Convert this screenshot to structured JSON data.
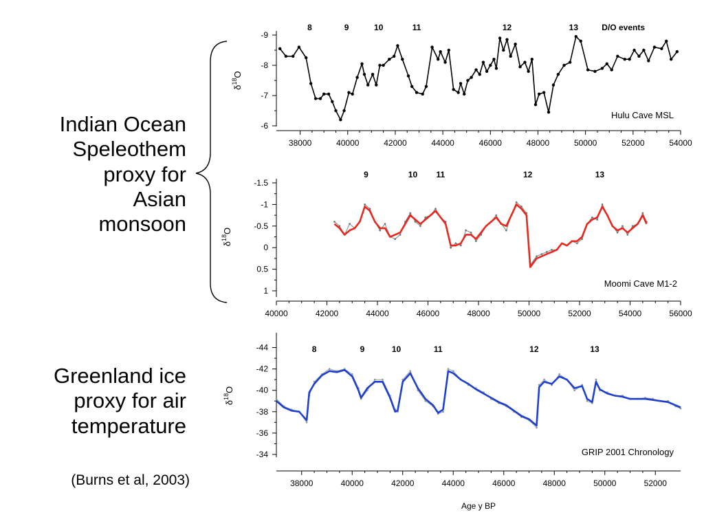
{
  "labels": {
    "indian": [
      "Indian Ocean",
      "Speleothem",
      "proxy for",
      "Asian",
      "monsoon"
    ],
    "greenland": [
      "Greenland ice",
      "proxy for air",
      "temperature"
    ],
    "citation": "(Burns et al, 2003)"
  },
  "colors": {
    "hulu": "#000000",
    "moomi_raw": "#6b7b7b",
    "moomi_smooth": "#e8281e",
    "grip_raw": "#8e9a9a",
    "grip_smooth": "#1f3fcf",
    "axis": "#000000"
  },
  "chart_data": [
    {
      "type": "line",
      "panel_label": "Hulu Cave MSL",
      "ylabel_main": "δ",
      "ylabel_sup": "18",
      "ylabel_sub": "O",
      "y_inverted": true,
      "xlim": [
        37000,
        54000
      ],
      "ylim": [
        -9,
        -6
      ],
      "xticks": [
        "38000",
        "40000",
        "42000",
        "44000",
        "46000",
        "48000",
        "50000",
        "52000",
        "54000"
      ],
      "yticks": [
        "-9",
        "-8",
        "-7",
        "-6"
      ],
      "events_label": "D/O events",
      "events": [
        {
          "label": "8",
          "x": 38400
        },
        {
          "label": "9",
          "x": 39950
        },
        {
          "label": "10",
          "x": 41300
        },
        {
          "label": "11",
          "x": 42900
        },
        {
          "label": "12",
          "x": 46700
        },
        {
          "label": "13",
          "x": 49500
        }
      ],
      "series": [
        {
          "x": [
            37150,
            37400,
            37700,
            37950,
            38250,
            38450,
            38650,
            38850,
            39000,
            39200,
            39350,
            39500,
            39700,
            39850,
            40050,
            40200,
            40400,
            40600,
            40700,
            40850,
            41050,
            41200,
            41350,
            41500,
            41750,
            41950,
            42100,
            42300,
            42550,
            42700,
            42900,
            43150,
            43300,
            43550,
            43800,
            43900,
            44100,
            44250,
            44450,
            44650,
            44750,
            44900,
            45050,
            45200,
            45400,
            45550,
            45700,
            45850,
            46000,
            46150,
            46250,
            46400,
            46550,
            46700,
            46850,
            47050,
            47250,
            47450,
            47600,
            47750,
            47900,
            48050,
            48250,
            48450,
            48650,
            48850,
            49100,
            49350,
            49600,
            49800,
            50100,
            50400,
            50700,
            50900,
            51100,
            51350,
            51650,
            51850,
            52050,
            52250,
            52450,
            52650,
            52900,
            53200,
            53400,
            53600,
            53850
          ],
          "values": [
            -8.55,
            -8.3,
            -8.3,
            -8.6,
            -8.25,
            -7.4,
            -6.9,
            -6.9,
            -7.05,
            -7.05,
            -6.8,
            -6.5,
            -6.2,
            -6.5,
            -7.1,
            -7.05,
            -7.6,
            -8.05,
            -7.7,
            -7.35,
            -7.7,
            -7.35,
            -8.0,
            -8.0,
            -8.2,
            -8.3,
            -8.65,
            -8.2,
            -7.65,
            -7.3,
            -7.1,
            -7.05,
            -7.3,
            -8.6,
            -8.2,
            -8.45,
            -8.1,
            -8.5,
            -7.2,
            -7.1,
            -7.4,
            -7.05,
            -7.5,
            -7.6,
            -7.85,
            -7.7,
            -8.1,
            -7.8,
            -8.0,
            -8.2,
            -7.9,
            -8.9,
            -8.5,
            -8.85,
            -8.3,
            -8.7,
            -7.95,
            -8.1,
            -7.8,
            -8.2,
            -6.7,
            -7.05,
            -7.1,
            -6.45,
            -7.35,
            -7.7,
            -8.0,
            -8.1,
            -8.95,
            -8.8,
            -7.85,
            -7.8,
            -7.9,
            -8.05,
            -7.85,
            -8.3,
            -8.2,
            -8.2,
            -8.5,
            -8.3,
            -8.5,
            -8.15,
            -8.6,
            -8.55,
            -8.8,
            -8.2,
            -8.45
          ]
        }
      ]
    },
    {
      "type": "line",
      "panel_label": "Moomi Cave M1-2",
      "ylabel_main": "δ",
      "ylabel_sup": "18",
      "ylabel_sub": "O",
      "y_inverted": true,
      "xlim": [
        40000,
        56000
      ],
      "ylim": [
        -1.5,
        1
      ],
      "xticks": [
        "40000",
        "42000",
        "44000",
        "46000",
        "48000",
        "50000",
        "52000",
        "54000",
        "56000"
      ],
      "yticks": [
        "-1.5",
        "-1",
        "-0.5",
        "0",
        "0.5",
        "1"
      ],
      "events": [
        {
          "label": "9",
          "x": 43550
        },
        {
          "label": "10",
          "x": 45400
        },
        {
          "label": "11",
          "x": 46500
        },
        {
          "label": "12",
          "x": 49950
        },
        {
          "label": "13",
          "x": 52800
        }
      ],
      "series": [
        {
          "x": [
            42300,
            42500,
            42700,
            42900,
            43100,
            43300,
            43500,
            43700,
            43900,
            44100,
            44300,
            44500,
            44700,
            44900,
            45100,
            45300,
            45500,
            45700,
            45900,
            46100,
            46300,
            46500,
            46700,
            46900,
            47100,
            47300,
            47500,
            47700,
            47900,
            48100,
            48300,
            48500,
            48700,
            48900,
            49100,
            49300,
            49500,
            49700,
            49900,
            50050,
            50300,
            50500,
            50700,
            50900,
            51100,
            51300,
            51500,
            51700,
            51900,
            52100,
            52300,
            52500,
            52700,
            52900,
            53100,
            53300,
            53500,
            53700,
            53900,
            54100,
            54300,
            54500,
            54650
          ],
          "values": [
            -0.6,
            -0.5,
            -0.3,
            -0.55,
            -0.45,
            -0.6,
            -1.0,
            -0.9,
            -0.6,
            -0.4,
            -0.55,
            -0.25,
            -0.2,
            -0.3,
            -0.6,
            -0.8,
            -0.6,
            -0.5,
            -0.7,
            -0.75,
            -0.9,
            -0.7,
            -0.6,
            0.0,
            -0.1,
            -0.05,
            -0.4,
            -0.35,
            -0.15,
            -0.3,
            -0.5,
            -0.6,
            -0.75,
            -0.55,
            -0.4,
            -0.75,
            -1.05,
            -0.95,
            -0.8,
            0.4,
            0.2,
            0.15,
            0.1,
            0.05,
            0.05,
            -0.1,
            -0.05,
            -0.15,
            -0.1,
            -0.2,
            -0.55,
            -0.7,
            -0.65,
            -1.0,
            -0.75,
            -0.5,
            -0.35,
            -0.5,
            -0.3,
            -0.5,
            -0.55,
            -0.8,
            -0.6
          ]
        },
        {
          "x": [
            42300,
            42500,
            42700,
            42900,
            43100,
            43300,
            43500,
            43700,
            43900,
            44100,
            44300,
            44500,
            44700,
            44900,
            45100,
            45300,
            45500,
            45700,
            45900,
            46100,
            46300,
            46500,
            46700,
            46900,
            47100,
            47300,
            47500,
            47700,
            47900,
            48100,
            48300,
            48500,
            48700,
            48900,
            49100,
            49300,
            49500,
            49700,
            49900,
            50050,
            50300,
            50500,
            50700,
            50900,
            51100,
            51300,
            51500,
            51700,
            51900,
            52100,
            52300,
            52500,
            52700,
            52900,
            53100,
            53300,
            53500,
            53700,
            53900,
            54100,
            54300,
            54500,
            54650
          ],
          "values": [
            -0.55,
            -0.45,
            -0.3,
            -0.4,
            -0.45,
            -0.6,
            -0.95,
            -0.85,
            -0.6,
            -0.45,
            -0.45,
            -0.25,
            -0.3,
            -0.35,
            -0.55,
            -0.75,
            -0.65,
            -0.55,
            -0.65,
            -0.75,
            -0.85,
            -0.7,
            -0.55,
            -0.05,
            -0.05,
            -0.1,
            -0.3,
            -0.3,
            -0.2,
            -0.35,
            -0.5,
            -0.6,
            -0.7,
            -0.55,
            -0.5,
            -0.75,
            -1.0,
            -0.9,
            -0.75,
            0.45,
            0.25,
            0.2,
            0.15,
            0.1,
            0.05,
            -0.1,
            -0.05,
            -0.15,
            -0.15,
            -0.25,
            -0.55,
            -0.65,
            -0.7,
            -0.95,
            -0.75,
            -0.5,
            -0.4,
            -0.45,
            -0.35,
            -0.45,
            -0.55,
            -0.75,
            -0.55
          ]
        }
      ]
    },
    {
      "type": "line",
      "panel_label": "GRIP 2001 Chronology",
      "ylabel_main": "δ",
      "ylabel_sup": "18",
      "ylabel_sub": "O",
      "xlabel": "Age y BP",
      "xlim": [
        37000,
        53000
      ],
      "ylim": [
        -45,
        -34
      ],
      "xticks": [
        "38000",
        "40000",
        "42000",
        "44000",
        "46000",
        "48000",
        "50000",
        "52000"
      ],
      "yticks": [
        "-34",
        "-36",
        "-38",
        "-40",
        "-42",
        "-44"
      ],
      "events": [
        {
          "label": "8",
          "x": 38500
        },
        {
          "label": "9",
          "x": 40400
        },
        {
          "label": "10",
          "x": 41750
        },
        {
          "label": "11",
          "x": 43400
        },
        {
          "label": "12",
          "x": 47200
        },
        {
          "label": "13",
          "x": 49600
        }
      ],
      "series": [
        {
          "x": [
            37000,
            37300,
            37600,
            37900,
            38200,
            38300,
            38500,
            38800,
            39100,
            39400,
            39700,
            40000,
            40250,
            40350,
            40600,
            40900,
            41200,
            41500,
            41700,
            41800,
            42000,
            42300,
            42600,
            42900,
            43200,
            43400,
            43600,
            43800,
            44000,
            44300,
            44600,
            44900,
            45200,
            45500,
            45800,
            46100,
            46400,
            46700,
            47000,
            47300,
            47400,
            47600,
            47900,
            48200,
            48500,
            48800,
            49100,
            49300,
            49500,
            49650,
            49800,
            50100,
            50400,
            50700,
            51000,
            51300,
            51600,
            51900,
            52200,
            52500,
            52800,
            53000
          ],
          "values": [
            -39.2,
            -38.5,
            -38.2,
            -38.0,
            -37.0,
            -39.5,
            -40.8,
            -41.5,
            -42.0,
            -41.8,
            -42.0,
            -41.5,
            -40.2,
            -39.2,
            -40.0,
            -41.0,
            -41.0,
            -39.5,
            -38.2,
            -38.0,
            -41.0,
            -41.8,
            -40.0,
            -39.0,
            -38.5,
            -37.8,
            -38.0,
            -42.0,
            -41.8,
            -41.0,
            -40.5,
            -40.2,
            -39.8,
            -39.2,
            -38.8,
            -38.5,
            -38.0,
            -37.5,
            -37.2,
            -36.5,
            -40.5,
            -41.0,
            -40.5,
            -41.5,
            -41.0,
            -40.0,
            -40.5,
            -39.0,
            -38.8,
            -41.0,
            -40.0,
            -39.8,
            -39.5,
            -39.5,
            -39.2,
            -39.2,
            -39.3,
            -39.2,
            -39.0,
            -39.0,
            -38.5,
            -38.3
          ]
        },
        {
          "x": [
            37000,
            37300,
            37600,
            37900,
            38200,
            38300,
            38500,
            38800,
            39100,
            39400,
            39700,
            40000,
            40250,
            40350,
            40600,
            40900,
            41200,
            41500,
            41700,
            41800,
            42000,
            42300,
            42600,
            42900,
            43200,
            43400,
            43600,
            43800,
            44000,
            44300,
            44600,
            44900,
            45200,
            45500,
            45800,
            46100,
            46400,
            46700,
            47000,
            47300,
            47400,
            47600,
            47900,
            48200,
            48500,
            48800,
            49100,
            49300,
            49500,
            49650,
            49800,
            50100,
            50400,
            50700,
            51000,
            51300,
            51600,
            51900,
            52200,
            52500,
            52800,
            53000
          ],
          "values": [
            -39.0,
            -38.4,
            -38.1,
            -38.0,
            -37.2,
            -39.8,
            -40.6,
            -41.4,
            -41.8,
            -41.7,
            -41.9,
            -41.3,
            -40.0,
            -39.3,
            -40.2,
            -40.8,
            -40.8,
            -39.3,
            -38.0,
            -38.1,
            -40.8,
            -41.6,
            -40.2,
            -39.2,
            -38.6,
            -37.9,
            -38.2,
            -41.8,
            -41.6,
            -41.0,
            -40.6,
            -40.1,
            -39.7,
            -39.3,
            -38.9,
            -38.6,
            -38.1,
            -37.6,
            -37.3,
            -36.7,
            -40.3,
            -40.8,
            -40.6,
            -41.3,
            -41.0,
            -40.2,
            -40.4,
            -39.2,
            -38.9,
            -40.8,
            -40.1,
            -39.7,
            -39.5,
            -39.4,
            -39.2,
            -39.2,
            -39.2,
            -39.1,
            -39.0,
            -38.9,
            -38.6,
            -38.4
          ]
        }
      ]
    }
  ]
}
